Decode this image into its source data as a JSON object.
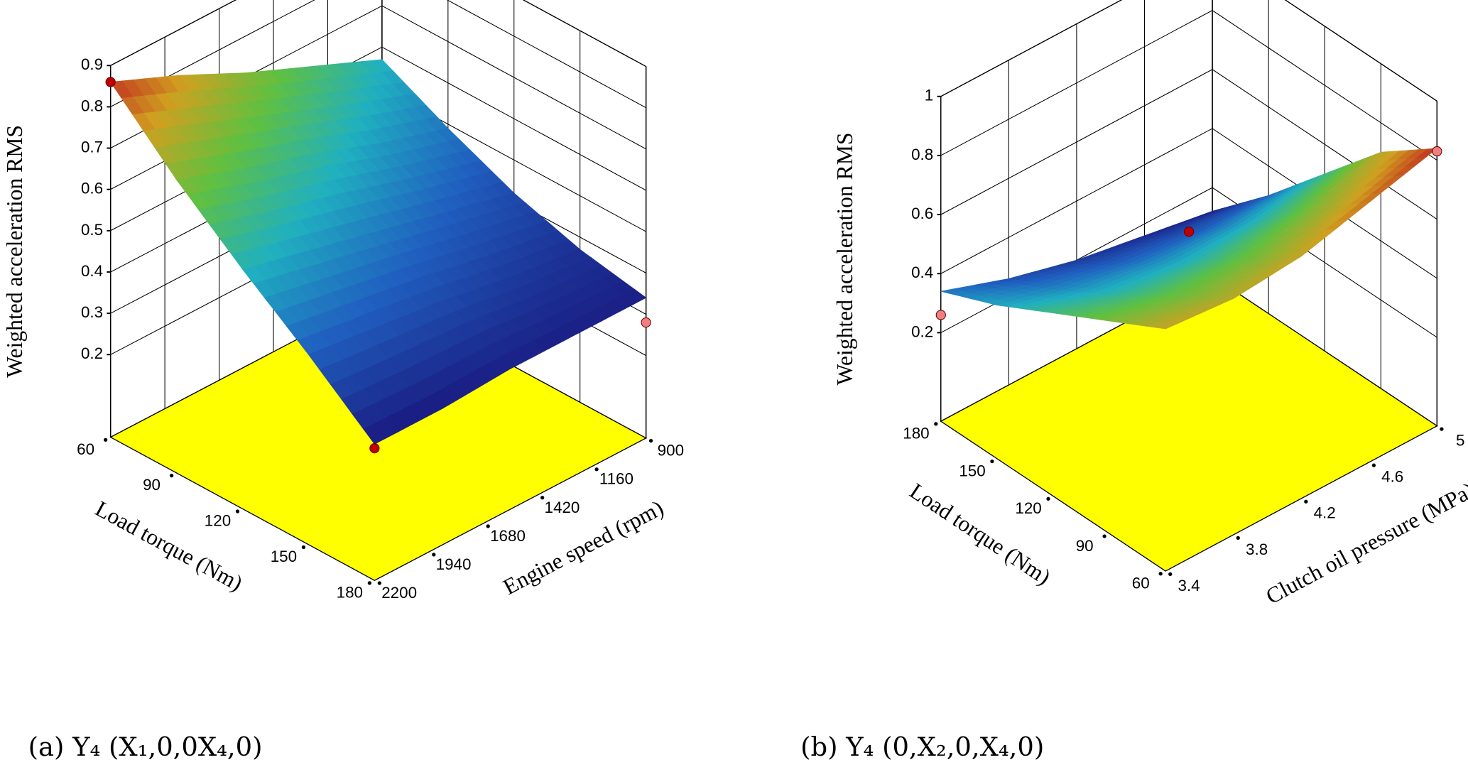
{
  "chart_data": [
    {
      "type": "surface",
      "caption": "(a) Y₄ (X₁,0,0X₄,0)",
      "x_label": "Load torque  (Nm)",
      "y_label": "Engine speed  (rpm)",
      "z_label": "Weighted acceleration RMS",
      "x": [
        60,
        90,
        120,
        150,
        180
      ],
      "y": [
        900,
        1225,
        1550,
        1875,
        2200
      ],
      "z": [
        [
          0.57,
          0.64,
          0.71,
          0.79,
          0.86
        ],
        [
          0.49,
          0.54,
          0.6,
          0.65,
          0.71
        ],
        [
          0.42,
          0.46,
          0.5,
          0.54,
          0.58
        ],
        [
          0.37,
          0.39,
          0.42,
          0.44,
          0.46
        ],
        [
          0.34,
          0.34,
          0.34,
          0.33,
          0.33
        ]
      ],
      "xlim": [
        60,
        180
      ],
      "xticks": [
        60,
        90,
        120,
        150,
        180
      ],
      "ylim": [
        900,
        2200
      ],
      "yticks": [
        900,
        1160,
        1420,
        1680,
        1940,
        2200
      ],
      "zlim": [
        0,
        0.9
      ],
      "zticks": [
        0.2,
        0.3,
        0.4,
        0.5,
        0.6,
        0.7,
        0.8,
        0.9
      ],
      "points": {
        "x": [
          60,
          180,
          180
        ],
        "y": [
          2200,
          2200,
          900
        ],
        "z": [
          0.86,
          0.32,
          0.28
        ],
        "colors": [
          "#c00000",
          "#c00000",
          "#f08080"
        ]
      },
      "floor_color": "#ffff00"
    },
    {
      "type": "surface",
      "caption": "(b) Y₄ (0,X₂,0,X₄,0)",
      "x_label": "Load torque  (Nm)",
      "y_label": "Clutch oil pressure  (MPa)",
      "z_label": "Weighted acceleration RMS",
      "x": [
        60,
        90,
        120,
        150,
        180
      ],
      "y": [
        3.4,
        3.8,
        4.2,
        4.6,
        5
      ],
      "z": [
        [
          0.72,
          0.7,
          0.72,
          0.78,
          0.84
        ],
        [
          0.62,
          0.59,
          0.59,
          0.63,
          0.7
        ],
        [
          0.52,
          0.47,
          0.45,
          0.46,
          0.5
        ],
        [
          0.42,
          0.36,
          0.32,
          0.3,
          0.3
        ],
        [
          0.34,
          0.26,
          0.2,
          0.16,
          0.12
        ]
      ],
      "xlim": [
        60,
        180
      ],
      "xticks": [
        60,
        90,
        120,
        150,
        180
      ],
      "ylim": [
        3.4,
        5
      ],
      "yticks": [
        3.4,
        3.8,
        4.2,
        4.6,
        5
      ],
      "zlim": [
        -0.1,
        1
      ],
      "zticks": [
        0.2,
        0.4,
        0.6,
        0.8,
        1
      ],
      "points": {
        "x": [
          180,
          120,
          60
        ],
        "y": [
          3.4,
          4.2,
          5
        ],
        "z": [
          0.26,
          0.55,
          0.83
        ],
        "colors": [
          "#f08080",
          "#c00000",
          "#f08080"
        ]
      },
      "floor_color": "#ffff00"
    }
  ]
}
